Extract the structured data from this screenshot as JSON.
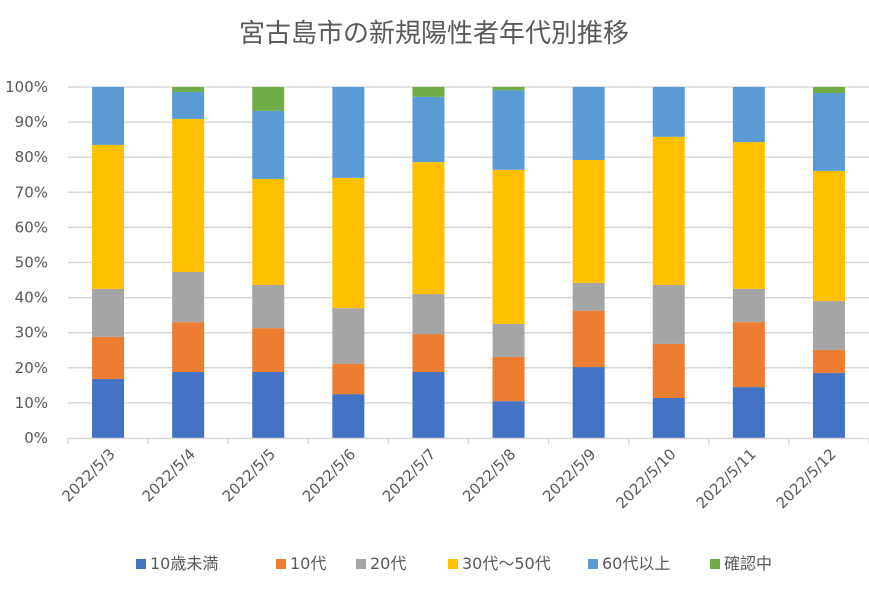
{
  "chart_data": {
    "type": "bar",
    "stacked": true,
    "percent": true,
    "title": "宮古島市の新規陽性者年代別推移",
    "xlabel": "",
    "ylabel": "",
    "ylim": [
      0,
      100
    ],
    "yticks": [
      "0%",
      "10%",
      "20%",
      "30%",
      "40%",
      "50%",
      "60%",
      "70%",
      "80%",
      "90%",
      "100%"
    ],
    "grid": true,
    "legend_position": "bottom",
    "categories": [
      "2022/5/3",
      "2022/5/4",
      "2022/5/5",
      "2022/5/6",
      "2022/5/7",
      "2022/5/8",
      "2022/5/9",
      "2022/5/10",
      "2022/5/11",
      "2022/5/12"
    ],
    "series": [
      {
        "name": "10歳未満",
        "color": "#4472C4",
        "values": [
          16.8,
          18.8,
          18.8,
          12.5,
          18.8,
          10.5,
          20.2,
          11.4,
          14.5,
          18.5
        ]
      },
      {
        "name": "10代",
        "color": "#ED7D31",
        "values": [
          12.0,
          14.2,
          12.5,
          8.6,
          10.8,
          12.6,
          16.0,
          15.4,
          18.5,
          6.6
        ]
      },
      {
        "name": "20代",
        "color": "#A5A5A5",
        "values": [
          13.7,
          14.3,
          12.3,
          15.9,
          11.4,
          9.4,
          8.0,
          16.8,
          9.5,
          13.9
        ]
      },
      {
        "name": "30代～50代",
        "color": "#FFC000",
        "values": [
          41.0,
          43.6,
          30.2,
          37.1,
          37.6,
          43.9,
          35.0,
          42.2,
          41.8,
          37.1
        ]
      },
      {
        "name": "60代以上",
        "color": "#5B9BD5",
        "values": [
          16.5,
          7.7,
          19.4,
          25.9,
          18.6,
          22.7,
          20.8,
          14.2,
          15.7,
          22.2
        ]
      },
      {
        "name": "確認中",
        "color": "#70AD47",
        "values": [
          0.0,
          1.4,
          6.8,
          0.0,
          2.8,
          0.9,
          0.0,
          0.0,
          0.0,
          1.7
        ]
      }
    ]
  }
}
